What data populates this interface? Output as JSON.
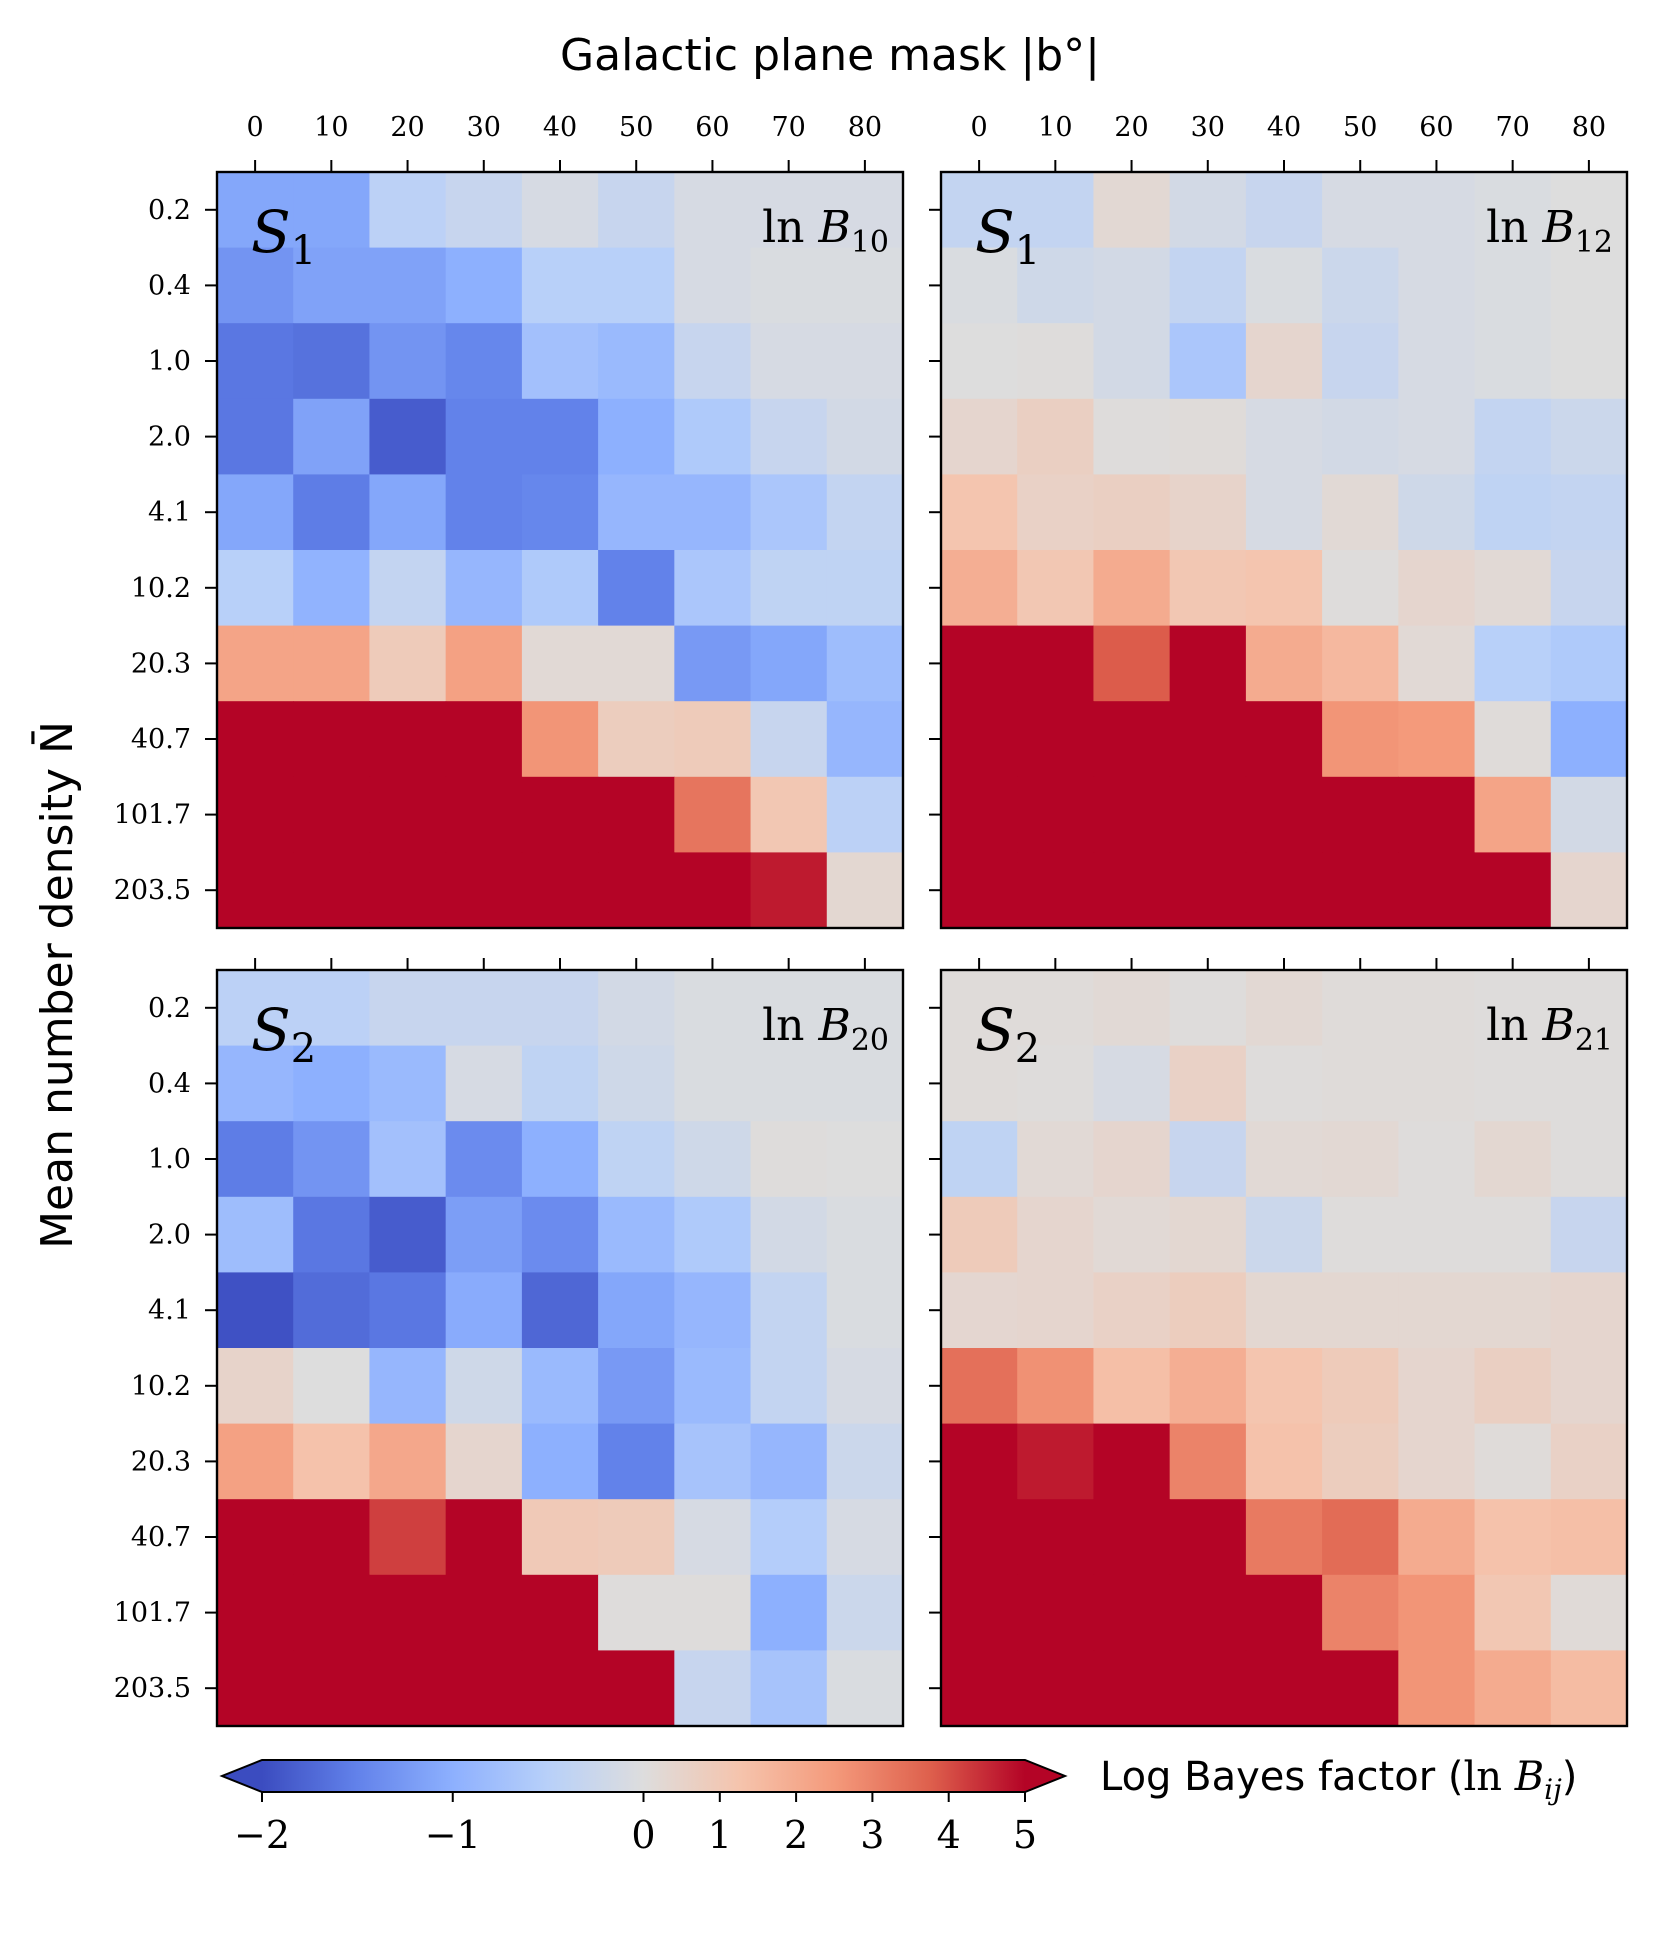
{
  "chart_data": {
    "type": "heatmap",
    "title": "Galactic plane mask |b°|",
    "xlabel": "Galactic plane mask |b°|",
    "ylabel": "Mean number density N̄",
    "x_ticks": [
      "0",
      "10",
      "20",
      "30",
      "40",
      "50",
      "60",
      "70",
      "80"
    ],
    "y_ticks": [
      "0.2",
      "0.4",
      "1.0",
      "2.0",
      "4.1",
      "10.2",
      "20.3",
      "40.7",
      "101.7",
      "203.5"
    ],
    "colorbar": {
      "label": "Log Bayes factor (ln B_ij)",
      "label_prefix": "Log Bayes factor (",
      "label_math": "ln B",
      "label_sub": "ij",
      "label_suffix": ")",
      "range": [
        -2,
        5
      ],
      "ticks": [
        "−2",
        "−1",
        "0",
        "1",
        "2",
        "3",
        "4",
        "5"
      ],
      "tick_values": [
        -2,
        -1,
        0,
        1,
        2,
        3,
        4,
        5
      ],
      "colormap": "coolwarm",
      "extend": "both"
    },
    "panels": [
      {
        "id": "top-left",
        "sample": "S",
        "sample_sub": "1",
        "stat": "ln B",
        "stat_sub": "10",
        "values": [
          [
            -1.1,
            -1.1,
            -0.45,
            -0.3,
            -0.1,
            -0.3,
            -0.1,
            -0.1,
            -0.1
          ],
          [
            -1.3,
            -1.15,
            -1.15,
            -1.0,
            -0.5,
            -0.5,
            -0.1,
            -0.05,
            -0.05
          ],
          [
            -1.6,
            -1.65,
            -1.3,
            -1.45,
            -0.75,
            -0.85,
            -0.3,
            -0.1,
            -0.1
          ],
          [
            -1.6,
            -1.15,
            -1.85,
            -1.5,
            -1.5,
            -1.0,
            -0.6,
            -0.3,
            -0.15
          ],
          [
            -1.1,
            -1.55,
            -1.1,
            -1.5,
            -1.45,
            -0.9,
            -0.9,
            -0.65,
            -0.35
          ],
          [
            -0.5,
            -0.95,
            -0.35,
            -0.9,
            -0.6,
            -1.5,
            -0.65,
            -0.4,
            -0.4
          ],
          [
            2.2,
            2.2,
            0.9,
            2.3,
            0.2,
            0.2,
            -1.25,
            -1.1,
            -0.8
          ],
          [
            5.0,
            5.0,
            5.0,
            5.0,
            2.6,
            0.8,
            0.9,
            -0.3,
            -0.9
          ],
          [
            5.0,
            5.0,
            5.0,
            5.0,
            5.0,
            5.0,
            3.3,
            1.1,
            -0.45
          ],
          [
            5.0,
            5.0,
            5.0,
            5.0,
            5.0,
            5.0,
            5.0,
            4.7,
            0.3
          ]
        ]
      },
      {
        "id": "top-right",
        "sample": "S",
        "sample_sub": "1",
        "stat": "ln B",
        "stat_sub": "12",
        "values": [
          [
            -0.35,
            -0.35,
            0.25,
            -0.15,
            -0.3,
            -0.1,
            -0.1,
            -0.05,
            0.0
          ],
          [
            -0.05,
            -0.2,
            -0.15,
            -0.35,
            -0.05,
            -0.25,
            -0.1,
            -0.05,
            0.0
          ],
          [
            0.0,
            0.05,
            -0.15,
            -0.65,
            0.4,
            -0.3,
            -0.1,
            -0.05,
            0.0
          ],
          [
            0.4,
            0.7,
            0.05,
            0.1,
            -0.1,
            -0.15,
            -0.1,
            -0.35,
            -0.25
          ],
          [
            1.2,
            0.6,
            0.7,
            0.5,
            -0.1,
            0.2,
            -0.2,
            -0.4,
            -0.35
          ],
          [
            1.9,
            1.1,
            2.0,
            1.1,
            1.2,
            0.05,
            0.4,
            0.2,
            -0.3
          ],
          [
            5.0,
            5.0,
            3.8,
            5.0,
            2.0,
            1.6,
            0.2,
            -0.5,
            -0.6
          ],
          [
            5.0,
            5.0,
            5.0,
            5.0,
            5.0,
            2.6,
            2.5,
            0.1,
            -1.0
          ],
          [
            5.0,
            5.0,
            5.0,
            5.0,
            5.0,
            5.0,
            5.0,
            2.2,
            -0.15
          ],
          [
            5.0,
            5.0,
            5.0,
            5.0,
            5.0,
            5.0,
            5.0,
            5.0,
            0.4
          ]
        ]
      },
      {
        "id": "bottom-left",
        "sample": "S",
        "sample_sub": "2",
        "stat": "ln B",
        "stat_sub": "20",
        "values": [
          [
            -0.45,
            -0.45,
            -0.3,
            -0.3,
            -0.3,
            -0.15,
            -0.05,
            -0.05,
            -0.05
          ],
          [
            -0.9,
            -1.0,
            -0.85,
            -0.1,
            -0.4,
            -0.2,
            -0.05,
            -0.05,
            -0.05
          ],
          [
            -1.55,
            -1.3,
            -0.75,
            -1.4,
            -1.0,
            -0.4,
            -0.2,
            0.05,
            0.0
          ],
          [
            -0.8,
            -1.6,
            -1.85,
            -1.2,
            -1.4,
            -0.85,
            -0.6,
            -0.15,
            -0.05
          ],
          [
            -1.95,
            -1.7,
            -1.6,
            -1.05,
            -1.75,
            -1.1,
            -0.9,
            -0.35,
            -0.05
          ],
          [
            0.5,
            0.0,
            -0.9,
            -0.2,
            -0.85,
            -1.25,
            -0.85,
            -0.35,
            -0.1
          ],
          [
            2.3,
            1.3,
            2.1,
            0.4,
            -1.0,
            -1.5,
            -0.7,
            -0.9,
            -0.25
          ],
          [
            5.0,
            5.0,
            4.2,
            5.0,
            1.0,
            0.9,
            -0.1,
            -0.55,
            -0.1
          ],
          [
            5.0,
            5.0,
            5.0,
            5.0,
            5.0,
            0.05,
            0.05,
            -1.0,
            -0.25
          ],
          [
            5.0,
            5.0,
            5.0,
            5.0,
            5.0,
            5.0,
            -0.3,
            -0.7,
            -0.05
          ]
        ]
      },
      {
        "id": "bottom-right",
        "sample": "S",
        "sample_sub": "2",
        "stat": "ln B",
        "stat_sub": "21",
        "values": [
          [
            0.1,
            0.1,
            0.2,
            0.05,
            0.25,
            0.1,
            0.1,
            0.05,
            0.05
          ],
          [
            0.1,
            0.05,
            -0.1,
            0.6,
            0.05,
            0.1,
            0.1,
            0.05,
            0.05
          ],
          [
            -0.4,
            0.2,
            0.4,
            -0.3,
            0.2,
            0.25,
            0.05,
            0.3,
            0.05
          ],
          [
            0.9,
            0.4,
            0.2,
            0.3,
            -0.25,
            0.05,
            0.05,
            0.05,
            -0.3
          ],
          [
            0.35,
            0.4,
            0.6,
            0.8,
            0.3,
            0.3,
            0.3,
            0.3,
            0.4
          ],
          [
            3.4,
            2.7,
            1.4,
            1.9,
            1.2,
            0.9,
            0.4,
            0.7,
            0.4
          ],
          [
            5.0,
            4.7,
            5.0,
            3.0,
            1.3,
            0.8,
            0.4,
            0.1,
            0.6
          ],
          [
            5.0,
            5.0,
            5.0,
            5.0,
            3.2,
            3.5,
            2.0,
            1.3,
            1.4
          ],
          [
            5.0,
            5.0,
            5.0,
            5.0,
            5.0,
            3.0,
            2.6,
            1.1,
            0.15
          ],
          [
            5.0,
            5.0,
            5.0,
            5.0,
            5.0,
            5.0,
            2.6,
            2.0,
            1.5
          ]
        ]
      }
    ]
  }
}
